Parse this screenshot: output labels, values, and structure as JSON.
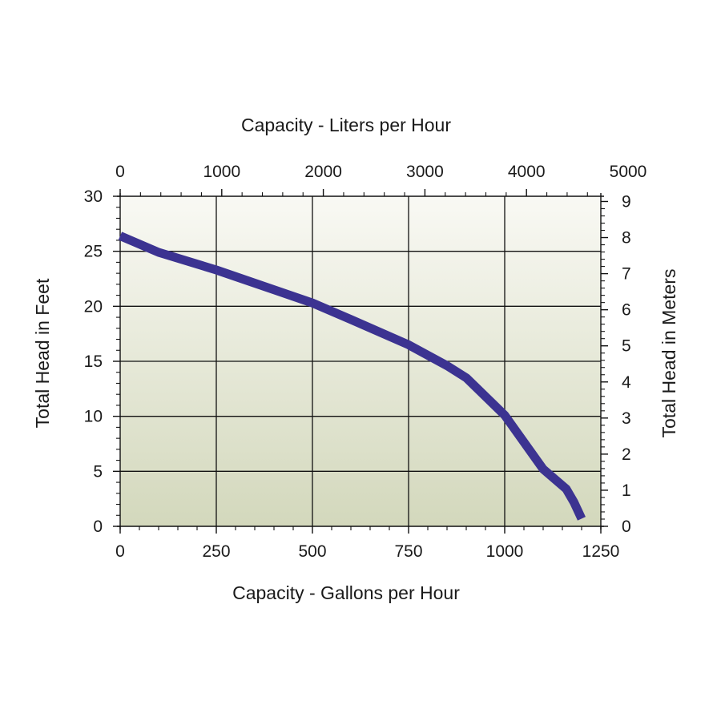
{
  "chart_data": {
    "type": "line",
    "x_bottom": {
      "label": "Capacity - Gallons per Hour",
      "range": [
        0,
        1250
      ],
      "ticks": [
        0,
        250,
        500,
        750,
        1000,
        1250
      ]
    },
    "x_top": {
      "label": "Capacity - Liters per Hour",
      "range": [
        0,
        4731.8
      ],
      "ticks": [
        0,
        1000,
        2000,
        3000,
        4000,
        5000
      ]
    },
    "y_left": {
      "label": "Total Head in Feet",
      "range": [
        0,
        30
      ],
      "ticks": [
        0,
        5,
        10,
        15,
        20,
        25,
        30
      ]
    },
    "y_right": {
      "label": "Total Head in Meters",
      "range": [
        0,
        9.144
      ],
      "ticks": [
        0,
        1,
        2,
        3,
        4,
        5,
        6,
        7,
        8,
        9
      ]
    },
    "grid": true,
    "series": [
      {
        "x": [
          0,
          100,
          250,
          400,
          500,
          600,
          750,
          850,
          900,
          1000,
          1100,
          1160,
          1180,
          1200
        ],
        "y": [
          26.4,
          24.9,
          23.3,
          21.5,
          20.3,
          18.8,
          16.5,
          14.6,
          13.5,
          10.1,
          5.2,
          3.4,
          2.2,
          0.7
        ]
      }
    ],
    "colors": {
      "line": "#3c3391",
      "plot_bg_top": "#f9f9f4",
      "plot_bg_bottom": "#d3d8bc",
      "grid": "#111111"
    }
  }
}
